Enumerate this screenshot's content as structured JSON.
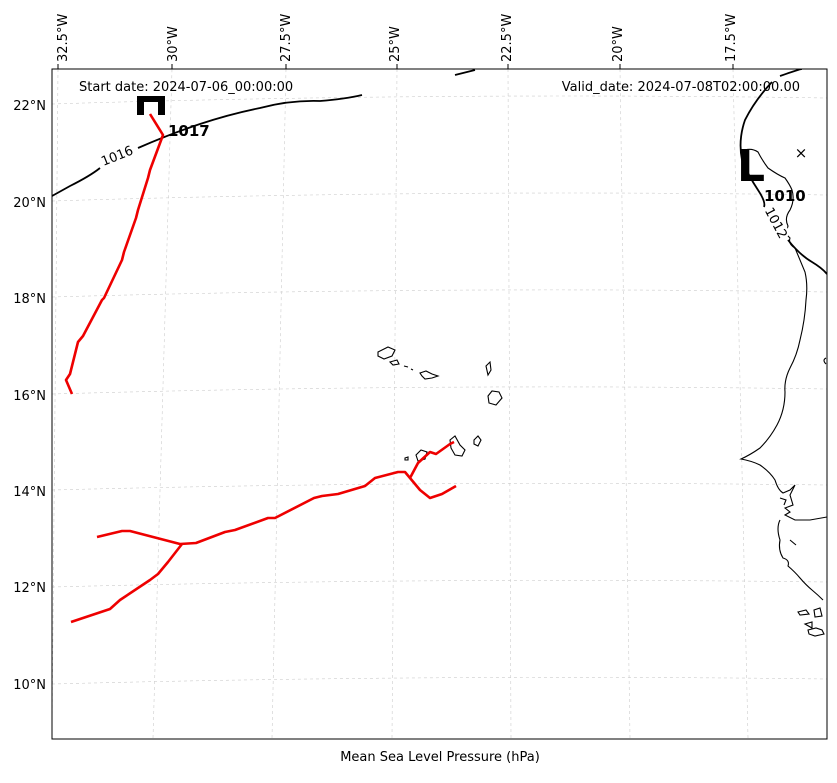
{
  "header": {
    "start_date": "Start date: 2024-07-06_00:00:00",
    "valid_date": "Valid_date: 2024-07-08T02:00:00.00"
  },
  "footer": {
    "xlabel": "Mean Sea Level Pressure (hPa)"
  },
  "axes": {
    "lon_ticks": [
      "32.5°W",
      "30°W",
      "27.5°W",
      "25°W",
      "22.5°W",
      "20°W",
      "17.5°W"
    ],
    "lat_ticks": [
      "22°N",
      "20°N",
      "18°N",
      "16°N",
      "14°N",
      "12°N",
      "10°N"
    ]
  },
  "pressure_centers": [
    {
      "type": "H",
      "value": "1017"
    },
    {
      "type": "L",
      "value": "1010"
    }
  ],
  "contour_labels": [
    "1016",
    "1012"
  ],
  "marker": "×",
  "colors": {
    "track": "#ee0000",
    "isobar": "#000000",
    "grid": "#cccccc"
  }
}
